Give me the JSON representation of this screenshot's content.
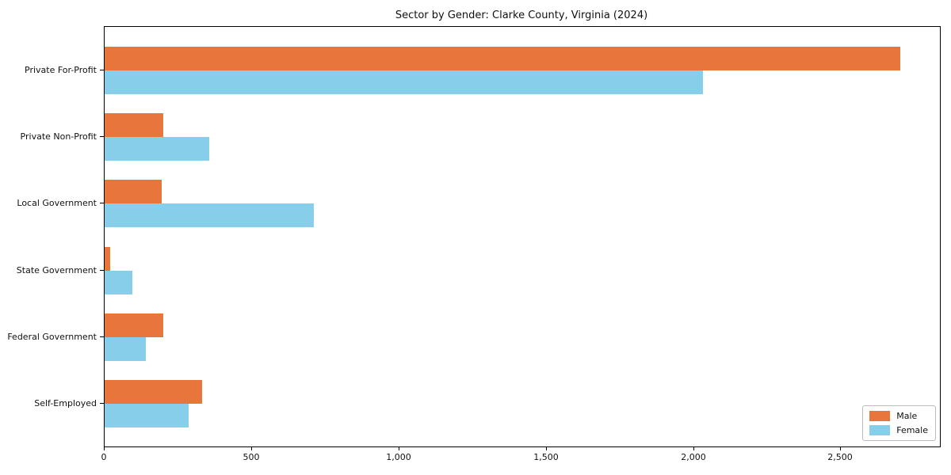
{
  "chart_data": {
    "type": "bar",
    "orientation": "horizontal",
    "title": "Sector by Gender: Clarke County, Virginia (2024)",
    "categories": [
      "Private For-Profit",
      "Private Non-Profit",
      "Local Government",
      "State Government",
      "Federal Government",
      "Self-Employed"
    ],
    "series": [
      {
        "name": "Male",
        "color": "#e8763c",
        "values": [
          2700,
          200,
          195,
          18,
          200,
          330
        ]
      },
      {
        "name": "Female",
        "color": "#87ceeb",
        "values": [
          2030,
          355,
          710,
          93,
          140,
          285
        ]
      }
    ],
    "xlabel": "",
    "ylabel": "",
    "xlim": [
      0,
      2835
    ],
    "x_ticks": [
      {
        "value": 0,
        "label": "0"
      },
      {
        "value": 500,
        "label": "500"
      },
      {
        "value": 1000,
        "label": "1,000"
      },
      {
        "value": 1500,
        "label": "1,500"
      },
      {
        "value": 2000,
        "label": "2,000"
      },
      {
        "value": 2500,
        "label": "2,500"
      }
    ],
    "legend": {
      "location": "lower right",
      "entries": [
        "Male",
        "Female"
      ]
    },
    "grid": false
  }
}
